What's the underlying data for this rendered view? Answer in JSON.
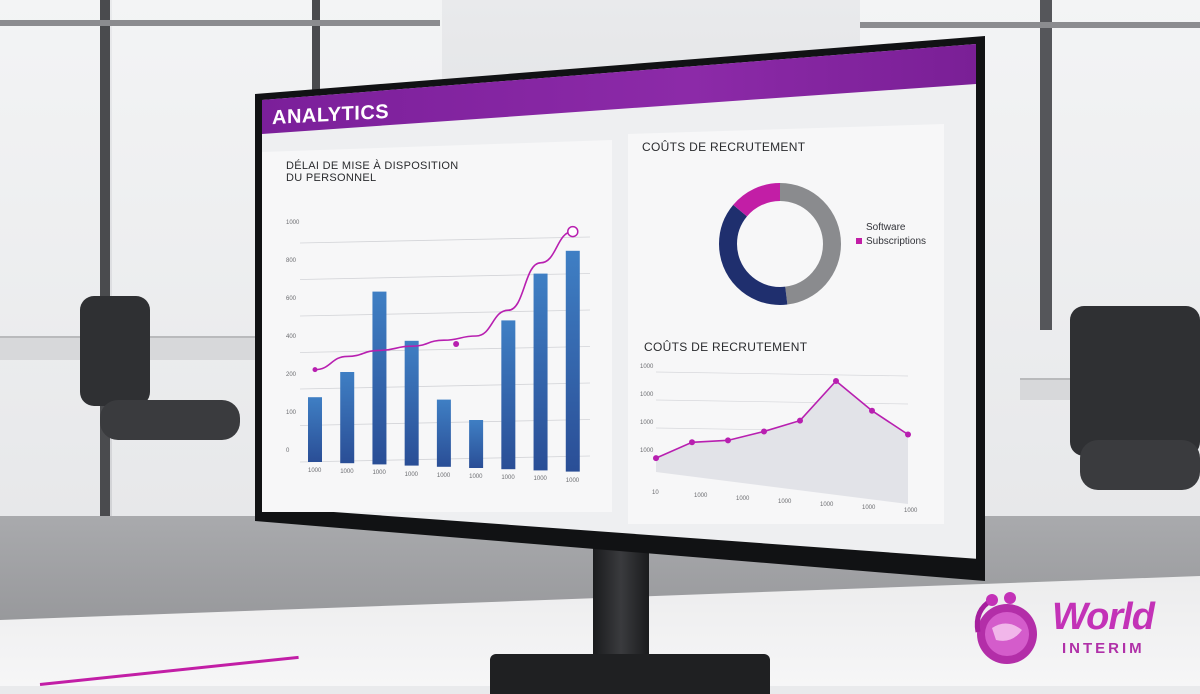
{
  "dashboard": {
    "title": "ANALYTICS",
    "accent_color": "#8c2aa8",
    "bar_color": "#2f5fa8",
    "line_color": "#b81fb0"
  },
  "left_panel": {
    "title_line1": "DÉLAI DE MISE À DISPOSITION",
    "title_line2": "DU PERSONNEL",
    "y_ticks": [
      "1000",
      "800",
      "600",
      "400",
      "200",
      "100",
      "0"
    ],
    "x_ticks": [
      "1000",
      "1000",
      "1000",
      "1000",
      "1000",
      "1000",
      "1000",
      "1000",
      "1000"
    ]
  },
  "donut_panel": {
    "title": "COÛTS DE RECRUTEMENT",
    "legend": [
      {
        "label": "Software",
        "color": "#ffffff"
      },
      {
        "label": "Subscriptions",
        "color": "#c21ea6"
      }
    ]
  },
  "area_panel": {
    "title": "COÛTS DE RECRUTEMENT",
    "y_ticks": [
      "1000",
      "1000",
      "1000",
      "1000"
    ],
    "x_ticks": [
      "10",
      "1000",
      "1000",
      "1000",
      "1000",
      "1000",
      "1000"
    ]
  },
  "chart_data": [
    {
      "type": "bar",
      "values": [
        0.27,
        0.38,
        0.72,
        0.52,
        0.28,
        0.2,
        0.62,
        0.82,
        0.92
      ],
      "line_values": [
        0.18,
        0.26,
        0.3,
        0.33,
        0.37,
        0.4,
        0.55,
        0.82,
        1.0
      ]
    },
    {
      "type": "pie",
      "values": [
        0.48,
        0.38,
        0.14
      ],
      "colors": [
        "#8a8b8e",
        "#1f2f6e",
        "#c21ea6"
      ]
    },
    {
      "type": "area",
      "values": [
        0.12,
        0.3,
        0.34,
        0.45,
        0.58,
        1.0,
        0.72,
        0.5
      ]
    }
  ],
  "logo": {
    "word": "World",
    "sub": "INTERIM"
  }
}
